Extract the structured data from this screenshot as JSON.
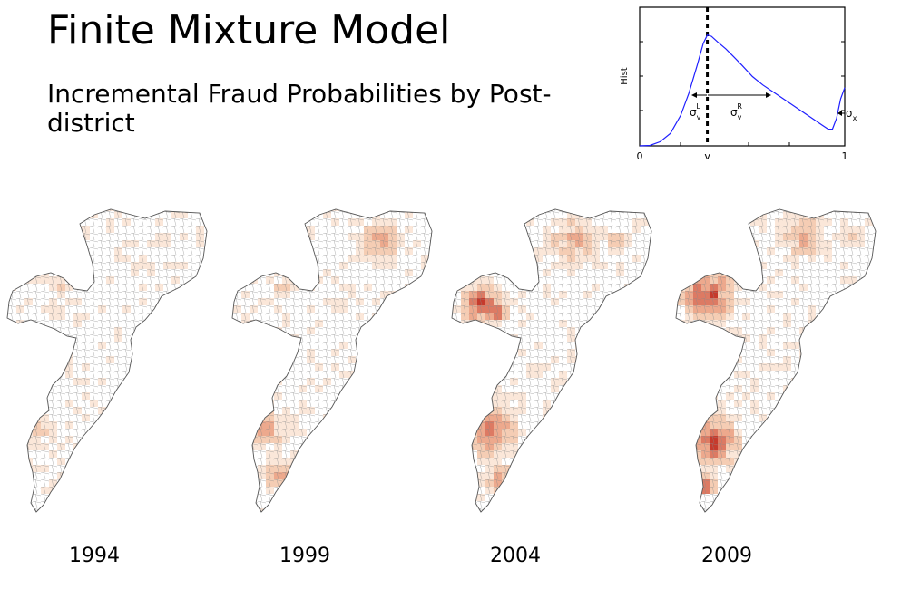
{
  "slide": {
    "title": "Finite Mixture Model",
    "subtitle": "Incremental Fraud Probabilities by Post-district"
  },
  "chart_data": {
    "type": "line",
    "ylabel": "Hist",
    "xticks": [
      "0",
      "v",
      "1"
    ],
    "x": [
      0.0,
      0.05,
      0.1,
      0.15,
      0.2,
      0.24,
      0.28,
      0.31,
      0.33,
      0.35,
      0.38,
      0.42,
      0.46,
      0.5,
      0.55,
      0.6,
      0.66,
      0.72,
      0.78,
      0.84,
      0.89,
      0.92,
      0.94,
      0.96,
      0.98,
      1.0
    ],
    "y": [
      0.0,
      0.003,
      0.03,
      0.09,
      0.22,
      0.38,
      0.58,
      0.74,
      0.8,
      0.79,
      0.75,
      0.7,
      0.64,
      0.58,
      0.5,
      0.44,
      0.38,
      0.32,
      0.26,
      0.2,
      0.15,
      0.12,
      0.12,
      0.2,
      0.34,
      0.42
    ],
    "mode_line_x": 0.33,
    "annotations": {
      "sigma_left": {
        "text": "σ",
        "sub": "v",
        "sup": "L"
      },
      "sigma_right": {
        "text": "σ",
        "sub": "v",
        "sup": "R"
      },
      "sigma_x": {
        "text": "σ",
        "sub": "x"
      }
    },
    "colors": {
      "line": "#1f1fff",
      "axis": "#000000"
    }
  },
  "maps": {
    "years": [
      "1994",
      "1999",
      "2004",
      "2009"
    ],
    "palette": [
      "#ffffff",
      "#fbe7d9",
      "#f5cdb4",
      "#eda98d",
      "#dd7a63",
      "#c63a2c",
      "#a80f0f"
    ],
    "border_color": "#555555"
  }
}
